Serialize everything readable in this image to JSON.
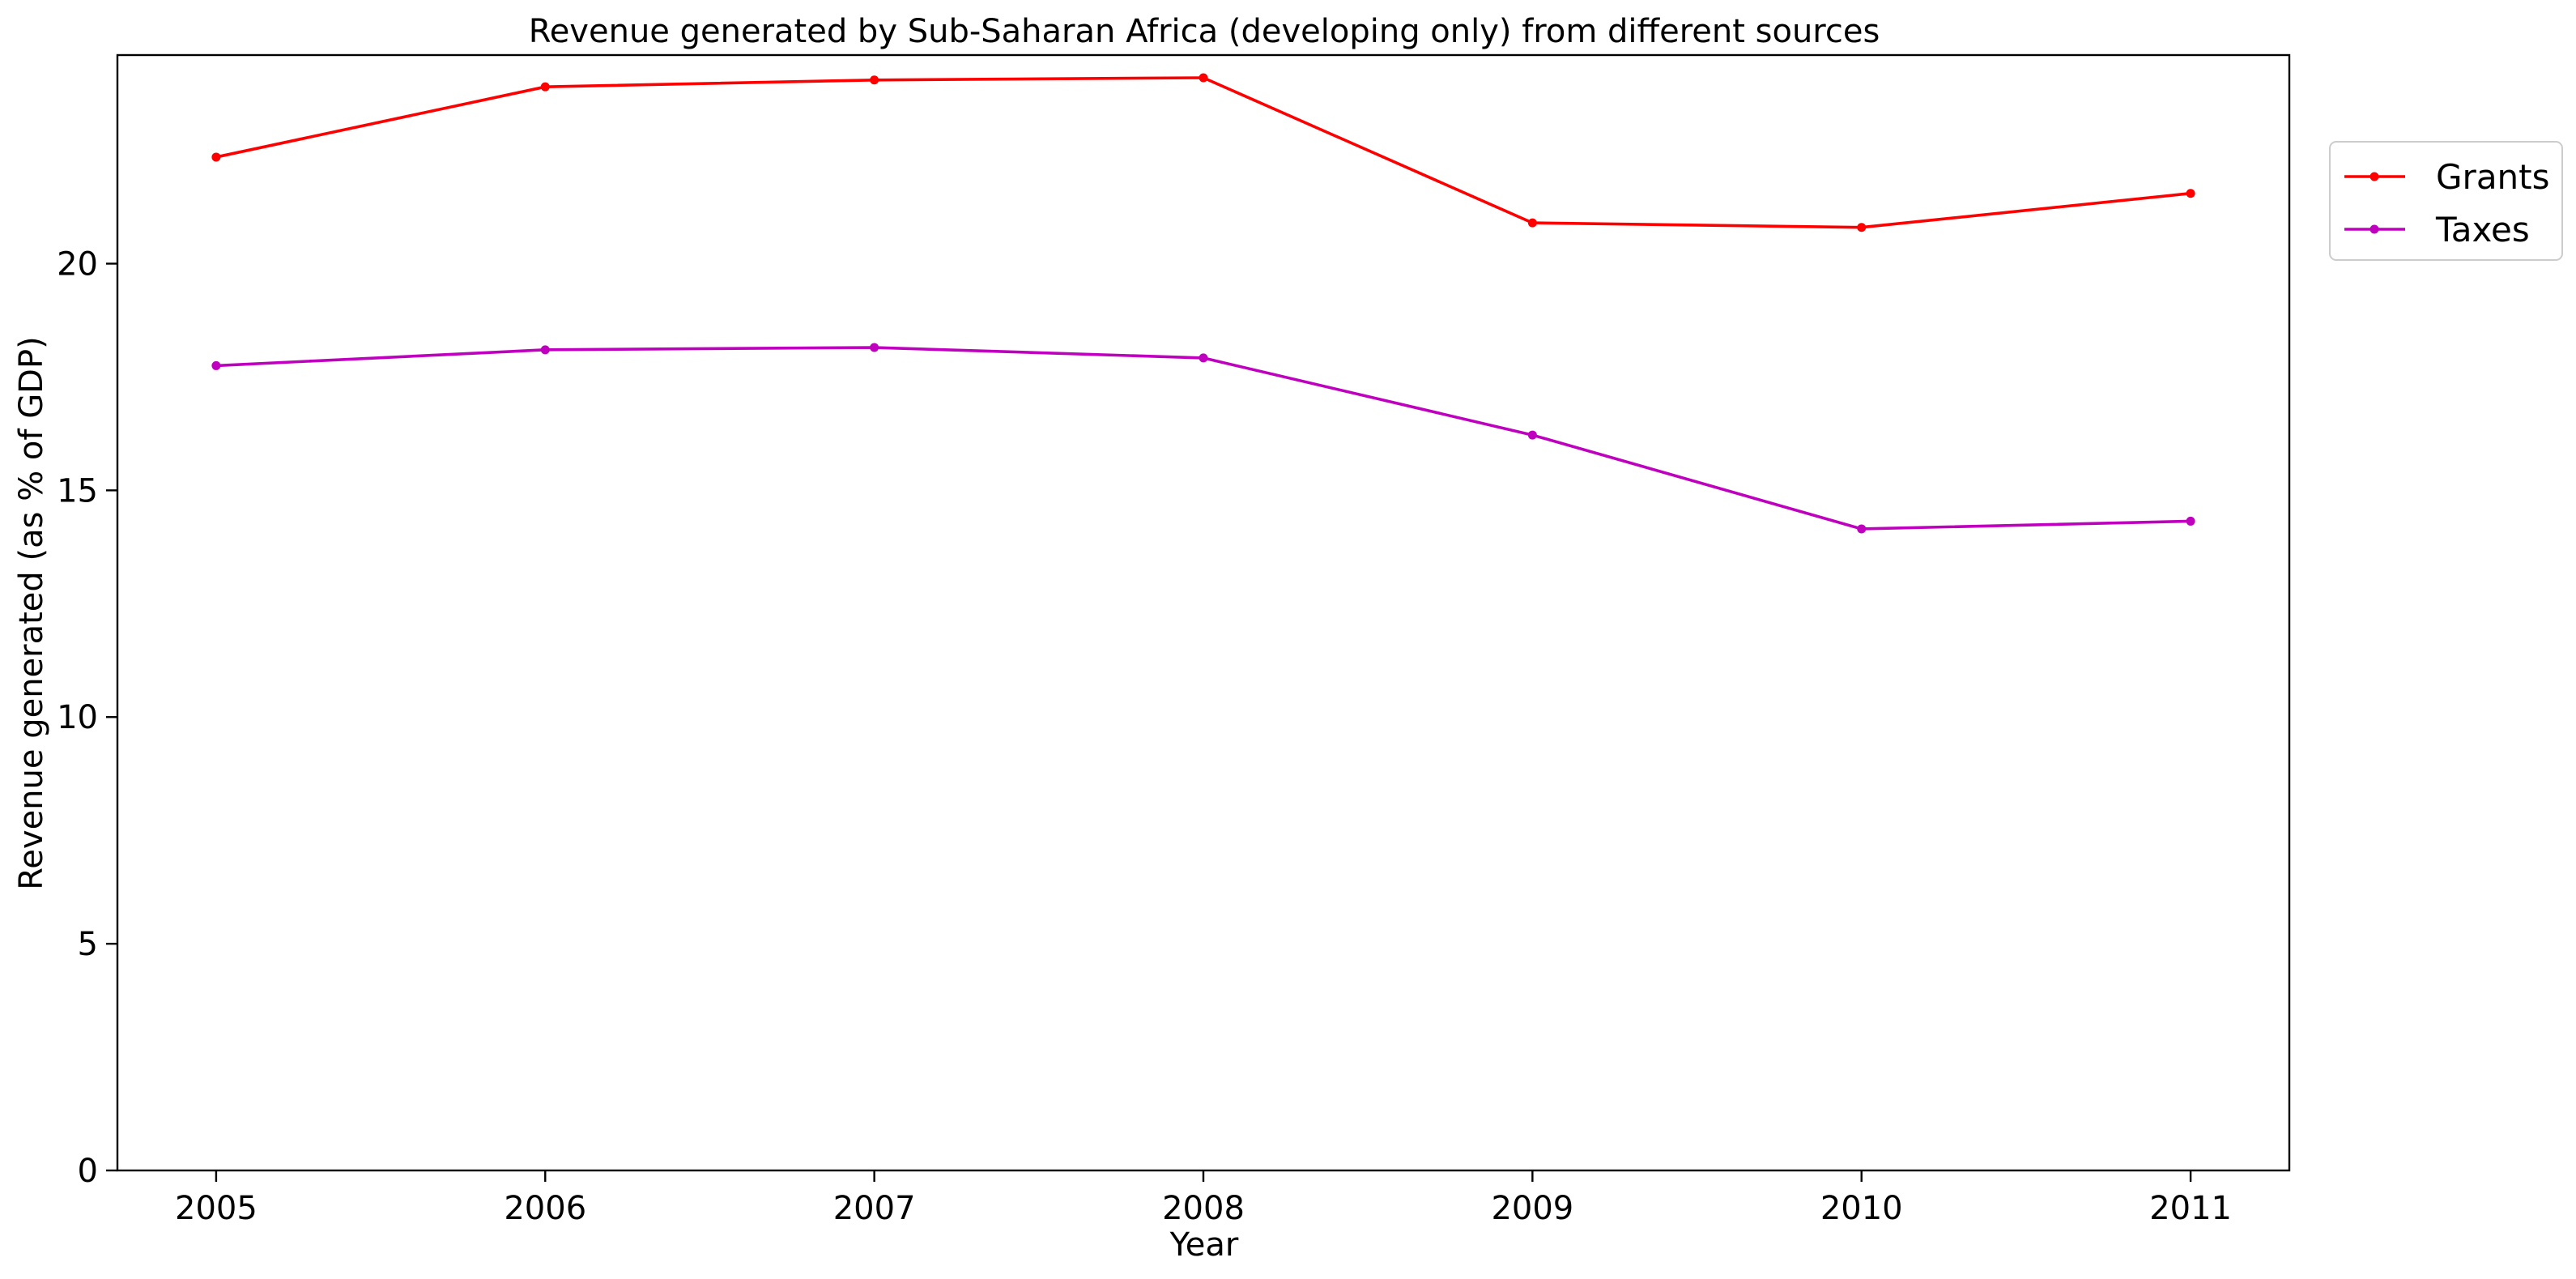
{
  "chart_data": {
    "type": "line",
    "title": "Revenue generated by Sub-Saharan Africa (developing only) from different sources",
    "xlabel": "Year",
    "ylabel": "Revenue generated (as % of GDP)",
    "x": [
      2005,
      2006,
      2007,
      2008,
      2009,
      2010,
      2011
    ],
    "x_tick_labels": [
      "2005",
      "2006",
      "2007",
      "2008",
      "2009",
      "2010",
      "2011"
    ],
    "ylim": [
      0,
      24.6
    ],
    "y_ticks": [
      0,
      5,
      10,
      15,
      20
    ],
    "y_tick_labels": [
      "0",
      "5",
      "10",
      "15",
      "20"
    ],
    "grid": false,
    "legend_position": "outside-top-right",
    "series": [
      {
        "name": "Grants",
        "color": "#ff0000",
        "values": [
          22.35,
          23.9,
          24.05,
          24.1,
          20.9,
          20.8,
          21.55
        ]
      },
      {
        "name": "Taxes",
        "color": "#bf00bf",
        "values": [
          17.75,
          18.1,
          18.15,
          17.92,
          16.22,
          14.15,
          14.32
        ]
      }
    ]
  }
}
